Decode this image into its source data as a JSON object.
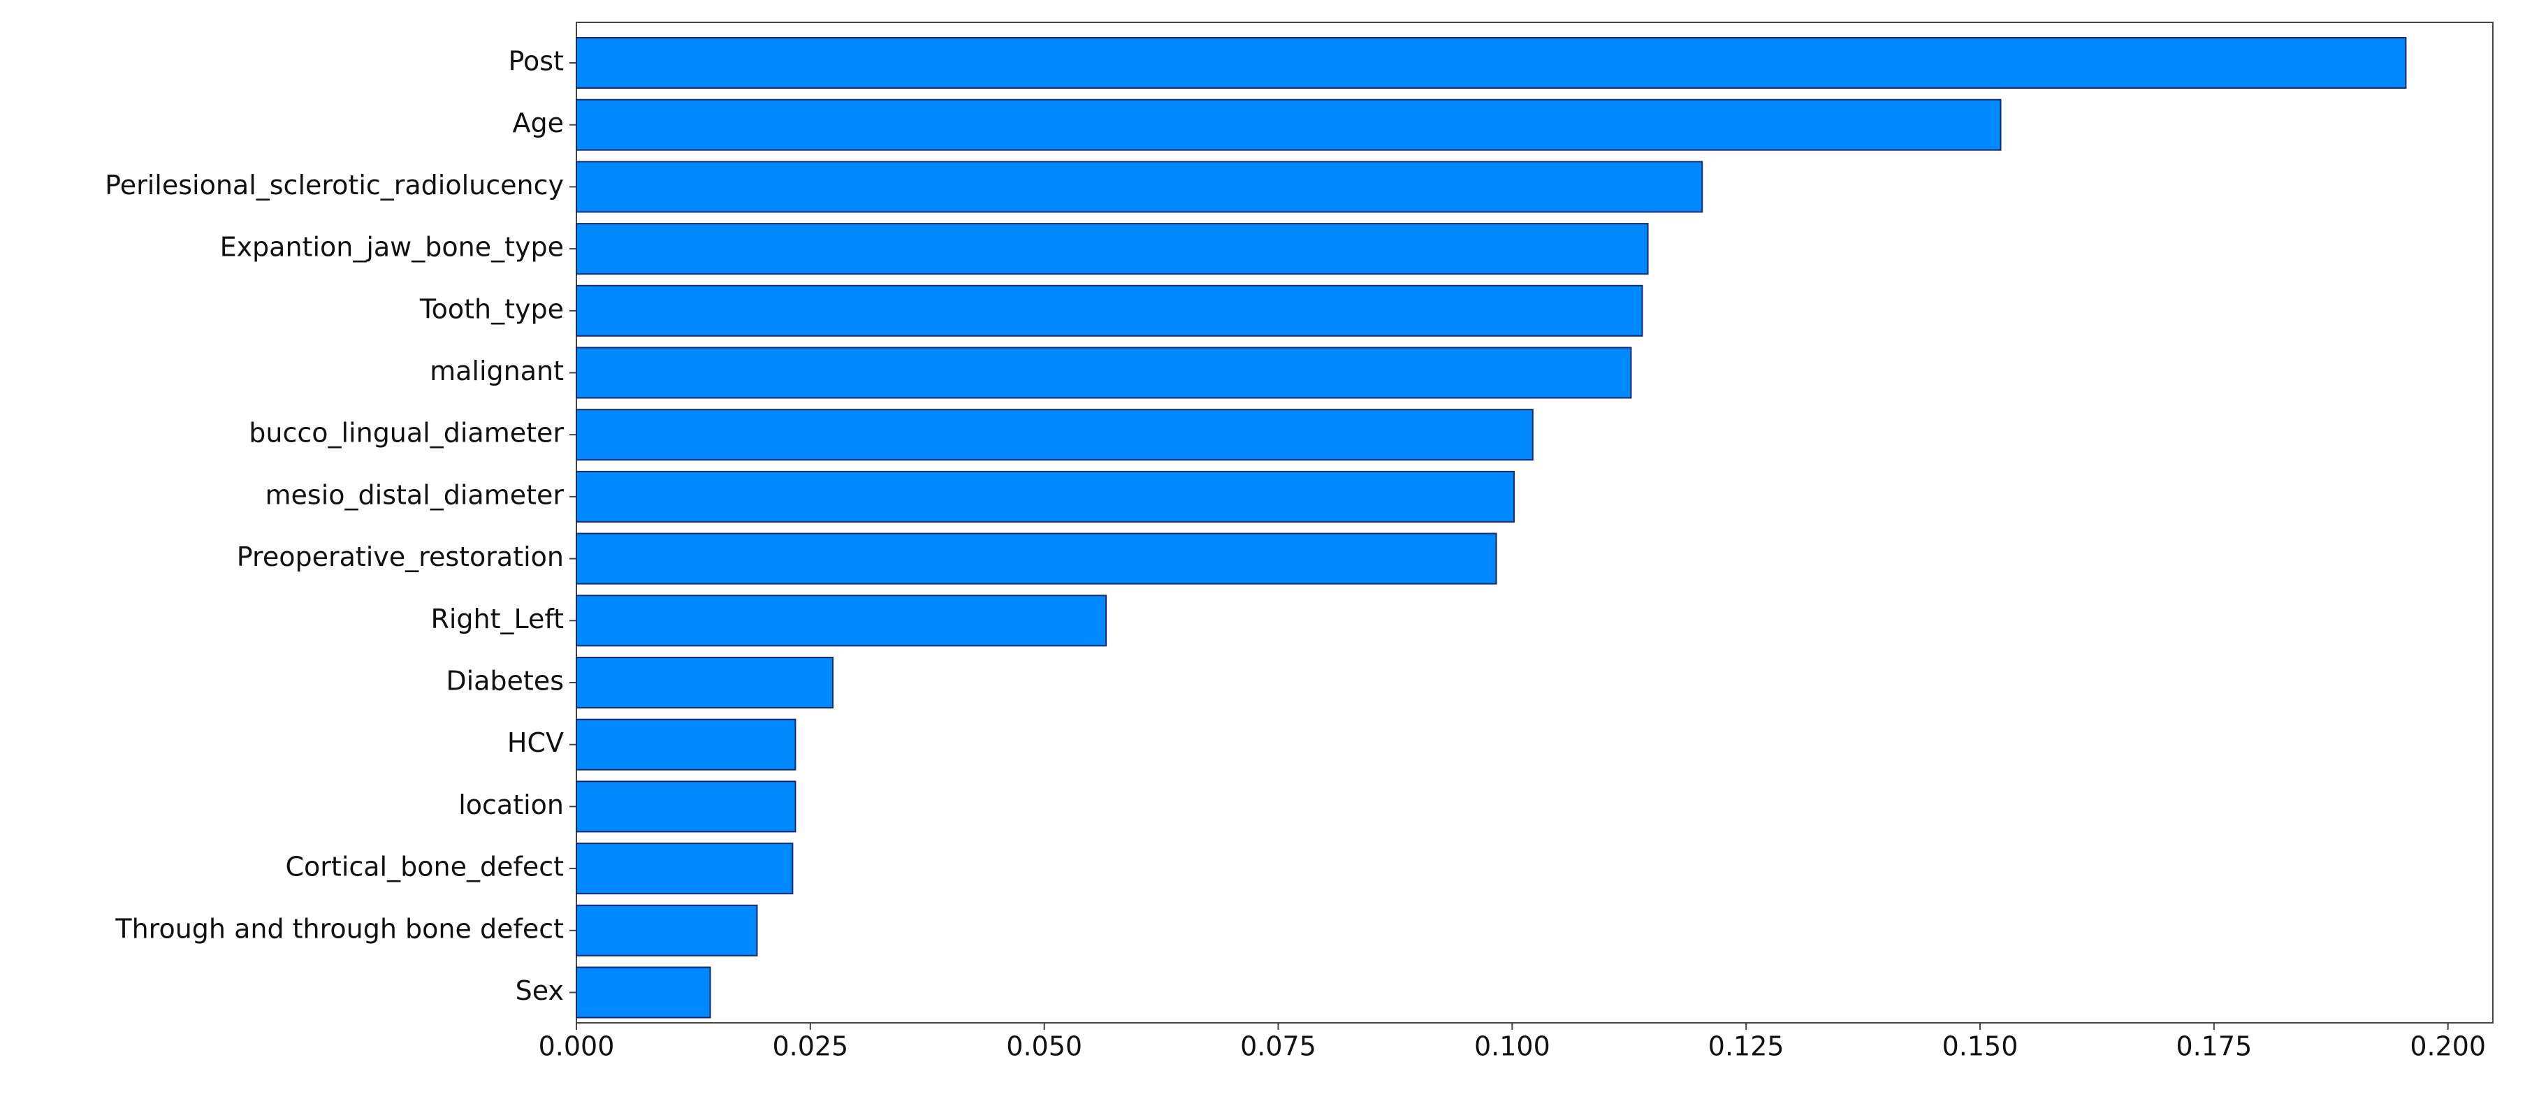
{
  "chart_data": {
    "type": "barh",
    "categories": [
      "Post",
      "Age",
      "Perilesional_sclerotic_radiolucency",
      "Expantion_jaw_bone_type",
      "Tooth_type",
      "malignant",
      "bucco_lingual_diameter",
      "mesio_distal_diameter",
      "Preoperative_restoration",
      "Right_Left",
      "Diabetes",
      "HCV",
      "location",
      "Cortical_bone_defect",
      "Through and through bone defect",
      "Sex"
    ],
    "values": [
      0.1955,
      0.1522,
      0.1203,
      0.1145,
      0.1139,
      0.1127,
      0.1022,
      0.1002,
      0.0983,
      0.0566,
      0.0274,
      0.0234,
      0.0234,
      0.0231,
      0.0193,
      0.0143
    ],
    "color": "#0088ff",
    "edgecolor": "#1a2a6c",
    "xlim": [
      0,
      0.2048
    ],
    "xticks": [
      {
        "value": 0,
        "label": "0.000"
      },
      0.025,
      {
        "value": 0.05,
        "label": "0.050"
      },
      0.075,
      {
        "value": 0.1,
        "label": "0.100"
      },
      0.125,
      {
        "value": 0.15,
        "label": "0.150"
      },
      0.175,
      {
        "value": 0.2,
        "label": "0.200"
      }
    ],
    "grid": false
  }
}
